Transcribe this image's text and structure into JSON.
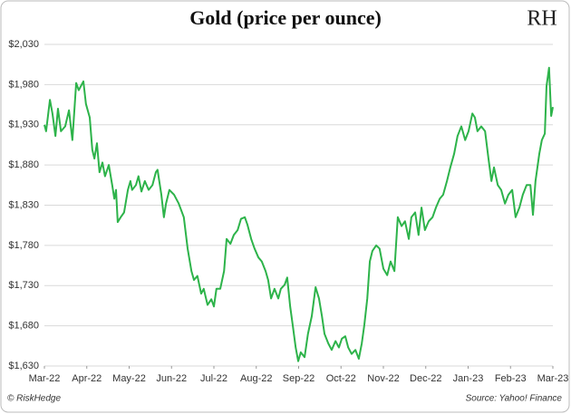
{
  "chart_data": {
    "type": "line",
    "title": "Gold (price per ounce)",
    "logo": "RH",
    "footer_left": "© RiskHedge",
    "footer_right": "Source: Yahoo! Finance",
    "xlim": [
      0,
      12
    ],
    "xticks": [
      {
        "value": 0,
        "label": "Mar-22"
      },
      {
        "value": 1,
        "label": "Apr-22"
      },
      {
        "value": 2,
        "label": "May-22"
      },
      {
        "value": 3,
        "label": "Jun-22"
      },
      {
        "value": 4,
        "label": "Jul-22"
      },
      {
        "value": 5,
        "label": "Aug-22"
      },
      {
        "value": 6,
        "label": "Sep-22"
      },
      {
        "value": 7,
        "label": "Oct-22"
      },
      {
        "value": 8,
        "label": "Nov-22"
      },
      {
        "value": 9,
        "label": "Dec-22"
      },
      {
        "value": 10,
        "label": "Jan-23"
      },
      {
        "value": 11,
        "label": "Feb-23"
      },
      {
        "value": 12,
        "label": "Mar-23"
      }
    ],
    "ylim": [
      1630,
      2030
    ],
    "yticks": [
      {
        "value": 1630,
        "label": "$1,630"
      },
      {
        "value": 1680,
        "label": "$1,680"
      },
      {
        "value": 1730,
        "label": "$1,730"
      },
      {
        "value": 1780,
        "label": "$1,780"
      },
      {
        "value": 1830,
        "label": "$1,830"
      },
      {
        "value": 1880,
        "label": "$1,880"
      },
      {
        "value": 1930,
        "label": "$1,930"
      },
      {
        "value": 1980,
        "label": "$1,980"
      },
      {
        "value": 2030,
        "label": "$2,030"
      }
    ],
    "grid": true,
    "series": [
      {
        "name": "Gold",
        "color": "#2db34a",
        "x": [
          0,
          0.04,
          0.13,
          0.19,
          0.26,
          0.32,
          0.39,
          0.49,
          0.58,
          0.66,
          0.75,
          0.81,
          0.92,
          0.98,
          1.07,
          1.13,
          1.18,
          1.24,
          1.3,
          1.37,
          1.43,
          1.52,
          1.6,
          1.65,
          1.69,
          1.73,
          1.8,
          1.88,
          1.97,
          2.03,
          2.07,
          2.16,
          2.22,
          2.29,
          2.37,
          2.46,
          2.55,
          2.63,
          2.67,
          2.76,
          2.82,
          2.87,
          2.95,
          3.06,
          3.17,
          3.29,
          3.38,
          3.47,
          3.53,
          3.61,
          3.7,
          3.76,
          3.85,
          3.94,
          4,
          4.06,
          4.15,
          4.24,
          4.3,
          4.39,
          4.47,
          4.56,
          4.64,
          4.73,
          4.79,
          4.88,
          4.96,
          5.05,
          5.13,
          5.22,
          5.28,
          5.35,
          5.43,
          5.52,
          5.58,
          5.67,
          5.73,
          5.8,
          5.86,
          5.93,
          5.99,
          6.05,
          6.14,
          6.22,
          6.31,
          6.4,
          6.48,
          6.55,
          6.61,
          6.7,
          6.78,
          6.87,
          6.95,
          7.02,
          7.1,
          7.17,
          7.25,
          7.34,
          7.42,
          7.49,
          7.55,
          7.62,
          7.68,
          7.74,
          7.83,
          7.91,
          8,
          8.09,
          8.17,
          8.26,
          8.34,
          8.43,
          8.51,
          8.6,
          8.66,
          8.75,
          8.83,
          8.9,
          8.98,
          9.07,
          9.16,
          9.24,
          9.33,
          9.41,
          9.5,
          9.58,
          9.67,
          9.75,
          9.84,
          9.93,
          10.01,
          10.1,
          10.16,
          10.22,
          10.31,
          10.4,
          10.48,
          10.55,
          10.61,
          10.7,
          10.78,
          10.87,
          10.95,
          11.04,
          11.12,
          11.21,
          11.29,
          11.38,
          11.47,
          11.53,
          11.59,
          11.68,
          11.74,
          11.81,
          11.85,
          11.91,
          11.96,
          12
        ],
        "values": [
          1930,
          1922,
          1961,
          1944,
          1916,
          1950,
          1922,
          1928,
          1948,
          1911,
          1982,
          1973,
          1984,
          1956,
          1939,
          1899,
          1888,
          1907,
          1871,
          1883,
          1866,
          1880,
          1855,
          1838,
          1849,
          1809,
          1815,
          1821,
          1849,
          1860,
          1849,
          1855,
          1866,
          1847,
          1860,
          1849,
          1855,
          1871,
          1874,
          1843,
          1815,
          1832,
          1849,
          1843,
          1832,
          1815,
          1776,
          1748,
          1737,
          1742,
          1720,
          1726,
          1706,
          1713,
          1704,
          1726,
          1726,
          1748,
          1788,
          1782,
          1793,
          1799,
          1813,
          1815,
          1806,
          1788,
          1776,
          1765,
          1760,
          1748,
          1737,
          1714,
          1726,
          1714,
          1726,
          1731,
          1740,
          1704,
          1681,
          1653,
          1636,
          1647,
          1641,
          1670,
          1692,
          1728,
          1714,
          1692,
          1670,
          1658,
          1650,
          1661,
          1653,
          1664,
          1667,
          1653,
          1645,
          1650,
          1639,
          1658,
          1681,
          1714,
          1760,
          1773,
          1780,
          1776,
          1751,
          1743,
          1760,
          1748,
          1815,
          1804,
          1810,
          1788,
          1815,
          1821,
          1793,
          1827,
          1799,
          1810,
          1815,
          1827,
          1838,
          1843,
          1860,
          1877,
          1894,
          1916,
          1928,
          1911,
          1922,
          1944,
          1939,
          1922,
          1928,
          1922,
          1888,
          1860,
          1877,
          1855,
          1849,
          1832,
          1843,
          1849,
          1815,
          1827,
          1843,
          1855,
          1855,
          1818,
          1860,
          1894,
          1911,
          1919,
          1978,
          2001,
          1941,
          1952
        ]
      }
    ]
  }
}
